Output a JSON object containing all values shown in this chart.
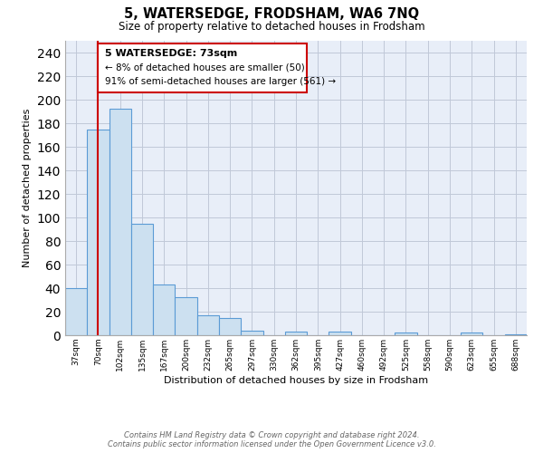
{
  "title": "5, WATERSEDGE, FRODSHAM, WA6 7NQ",
  "subtitle": "Size of property relative to detached houses in Frodsham",
  "xlabel": "Distribution of detached houses by size in Frodsham",
  "ylabel": "Number of detached properties",
  "bar_labels": [
    "37sqm",
    "70sqm",
    "102sqm",
    "135sqm",
    "167sqm",
    "200sqm",
    "232sqm",
    "265sqm",
    "297sqm",
    "330sqm",
    "362sqm",
    "395sqm",
    "427sqm",
    "460sqm",
    "492sqm",
    "525sqm",
    "558sqm",
    "590sqm",
    "623sqm",
    "655sqm",
    "688sqm"
  ],
  "bar_heights": [
    40,
    175,
    192,
    95,
    43,
    32,
    17,
    15,
    4,
    0,
    3,
    0,
    3,
    0,
    0,
    2,
    0,
    0,
    2,
    0,
    1
  ],
  "bar_color": "#cce0f0",
  "bar_edge_color": "#5b9bd5",
  "ylim": [
    0,
    250
  ],
  "yticks": [
    0,
    20,
    40,
    60,
    80,
    100,
    120,
    140,
    160,
    180,
    200,
    220,
    240
  ],
  "property_line_color": "#cc0000",
  "annotation_title": "5 WATERSEDGE: 73sqm",
  "annotation_line1": "← 8% of detached houses are smaller (50)",
  "annotation_line2": "91% of semi-detached houses are larger (561) →",
  "footer_line1": "Contains HM Land Registry data © Crown copyright and database right 2024.",
  "footer_line2": "Contains public sector information licensed under the Open Government Licence v3.0.",
  "background_color": "#ffffff",
  "grid_color": "#c0c8d8",
  "plot_bg_color": "#e8eef8"
}
